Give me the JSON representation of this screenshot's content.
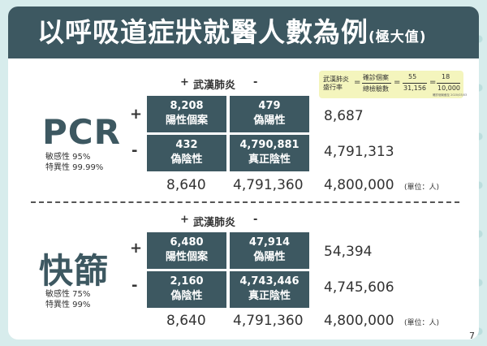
{
  "title": {
    "main": "以呼吸道症狀就醫人數為例",
    "sub": "(極大值)"
  },
  "formula": {
    "label_line1": "武漢肺炎",
    "label_line2": "盛行率",
    "frac1_num": "確診個案",
    "frac1_den": "總檢驗數",
    "frac2_num": "55",
    "frac2_den": "31,156",
    "frac3_num": "18",
    "frac3_den": "10,000",
    "note": "確診個案截至 2020/03/03"
  },
  "pcr": {
    "name": "PCR",
    "sensitivity": "敏感性 95%",
    "specificity": "特異性 99.99%",
    "col_plus": "+",
    "col_label": "武漢肺炎",
    "col_minus": "-",
    "row_plus": "+",
    "row_minus": "-",
    "tp_value": "8,208",
    "tp_label": "陽性個案",
    "fp_value": "479",
    "fp_label": "偽陽性",
    "fn_value": "432",
    "fn_label": "偽陰性",
    "tn_value": "4,790,881",
    "tn_label": "真正陰性",
    "row_total_plus": "8,687",
    "row_total_minus": "4,791,313",
    "col_total_plus": "8,640",
    "col_total_minus": "4,791,360",
    "grand_total": "4,800,000",
    "unit": "(單位：人)"
  },
  "rapid": {
    "name": "快篩",
    "sensitivity": "敏感性 75%",
    "specificity": "特異性 99%",
    "col_plus": "+",
    "col_label": "武漢肺炎",
    "col_minus": "-",
    "row_plus": "+",
    "row_minus": "-",
    "tp_value": "6,480",
    "tp_label": "陽性個案",
    "fp_value": "47,914",
    "fp_label": "偽陽性",
    "fn_value": "2,160",
    "fn_label": "偽陰性",
    "tn_value": "4,743,446",
    "tn_label": "真正陰性",
    "row_total_plus": "54,394",
    "row_total_minus": "4,745,606",
    "col_total_plus": "8,640",
    "col_total_minus": "4,791,360",
    "grand_total": "4,800,000",
    "unit": "(單位：人)"
  },
  "page_number": "7"
}
